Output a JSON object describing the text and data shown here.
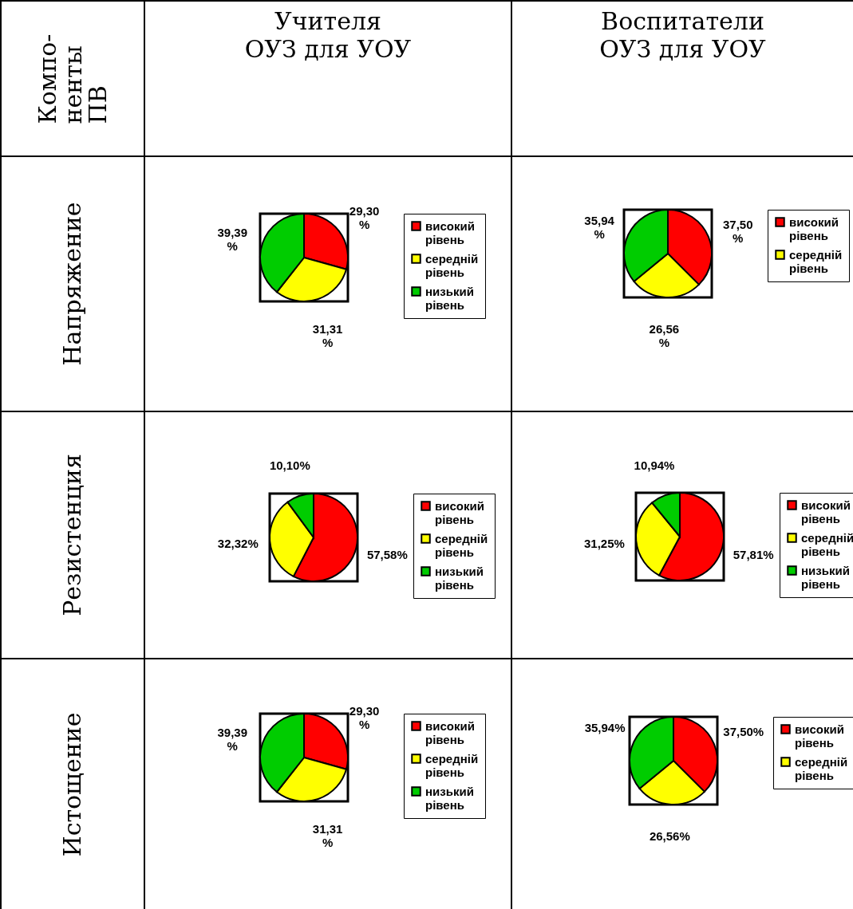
{
  "chart_data": [
    {
      "type": "other",
      "annotations": [
        "Компо-\nненты ПВ",
        "Учителя\nОУЗ для УОУ",
        "Воспитатели\nОУЗ для УОУ",
        "Напряжение",
        "Резистенция",
        "Истощение"
      ]
    },
    {
      "type": "pie",
      "categories": [
        "високий рівень",
        "середній рівень",
        "низький рівень"
      ],
      "values": [
        29.3,
        31.31,
        39.39
      ],
      "colors": [
        "#ff0000",
        "#ffff00",
        "#00cc00"
      ],
      "value_labels": [
        "29,30 %",
        "31,31 %",
        "39,39 %"
      ],
      "legend": "right"
    },
    {
      "type": "pie",
      "categories": [
        "високий рівень",
        "середній рівень",
        null
      ],
      "values": [
        37.5,
        26.56,
        35.94
      ],
      "colors": [
        "#ff0000",
        "#ffff00",
        "#00cc00"
      ],
      "value_labels": [
        "37,50 %",
        "26,56 %",
        "35,94 %"
      ],
      "legend": "right"
    },
    {
      "type": "pie",
      "categories": [
        "високий рівень",
        "середній рівень",
        "низький рівень"
      ],
      "values": [
        57.58,
        32.32,
        10.1
      ],
      "colors": [
        "#ff0000",
        "#ffff00",
        "#00cc00"
      ],
      "value_labels": [
        "57,58%",
        "32,32%",
        "10,10%"
      ],
      "legend": "right"
    },
    {
      "type": "pie",
      "categories": [
        "високий рівень",
        "середній рівень",
        "низький рівень"
      ],
      "values": [
        57.81,
        31.25,
        10.94
      ],
      "colors": [
        "#ff0000",
        "#ffff00",
        "#00cc00"
      ],
      "value_labels": [
        "57,81%",
        "31,25%",
        "10,94%"
      ],
      "legend": "right"
    },
    {
      "type": "pie",
      "categories": [
        "високий рівень",
        "середній рівень",
        "низький рівень"
      ],
      "values": [
        29.3,
        31.31,
        39.39
      ],
      "colors": [
        "#ff0000",
        "#ffff00",
        "#00cc00"
      ],
      "value_labels": [
        "29,30 %",
        "31,31 %",
        "39,39 %"
      ],
      "legend": "right"
    },
    {
      "type": "pie",
      "categories": [
        "високий рівень",
        "середній рівень",
        null
      ],
      "values": [
        37.5,
        26.56,
        35.94
      ],
      "colors": [
        "#ff0000",
        "#ffff00",
        "#00cc00"
      ],
      "value_labels": [
        "37,50%",
        "26,56%",
        "35,94%"
      ],
      "legend": "right"
    }
  ]
}
